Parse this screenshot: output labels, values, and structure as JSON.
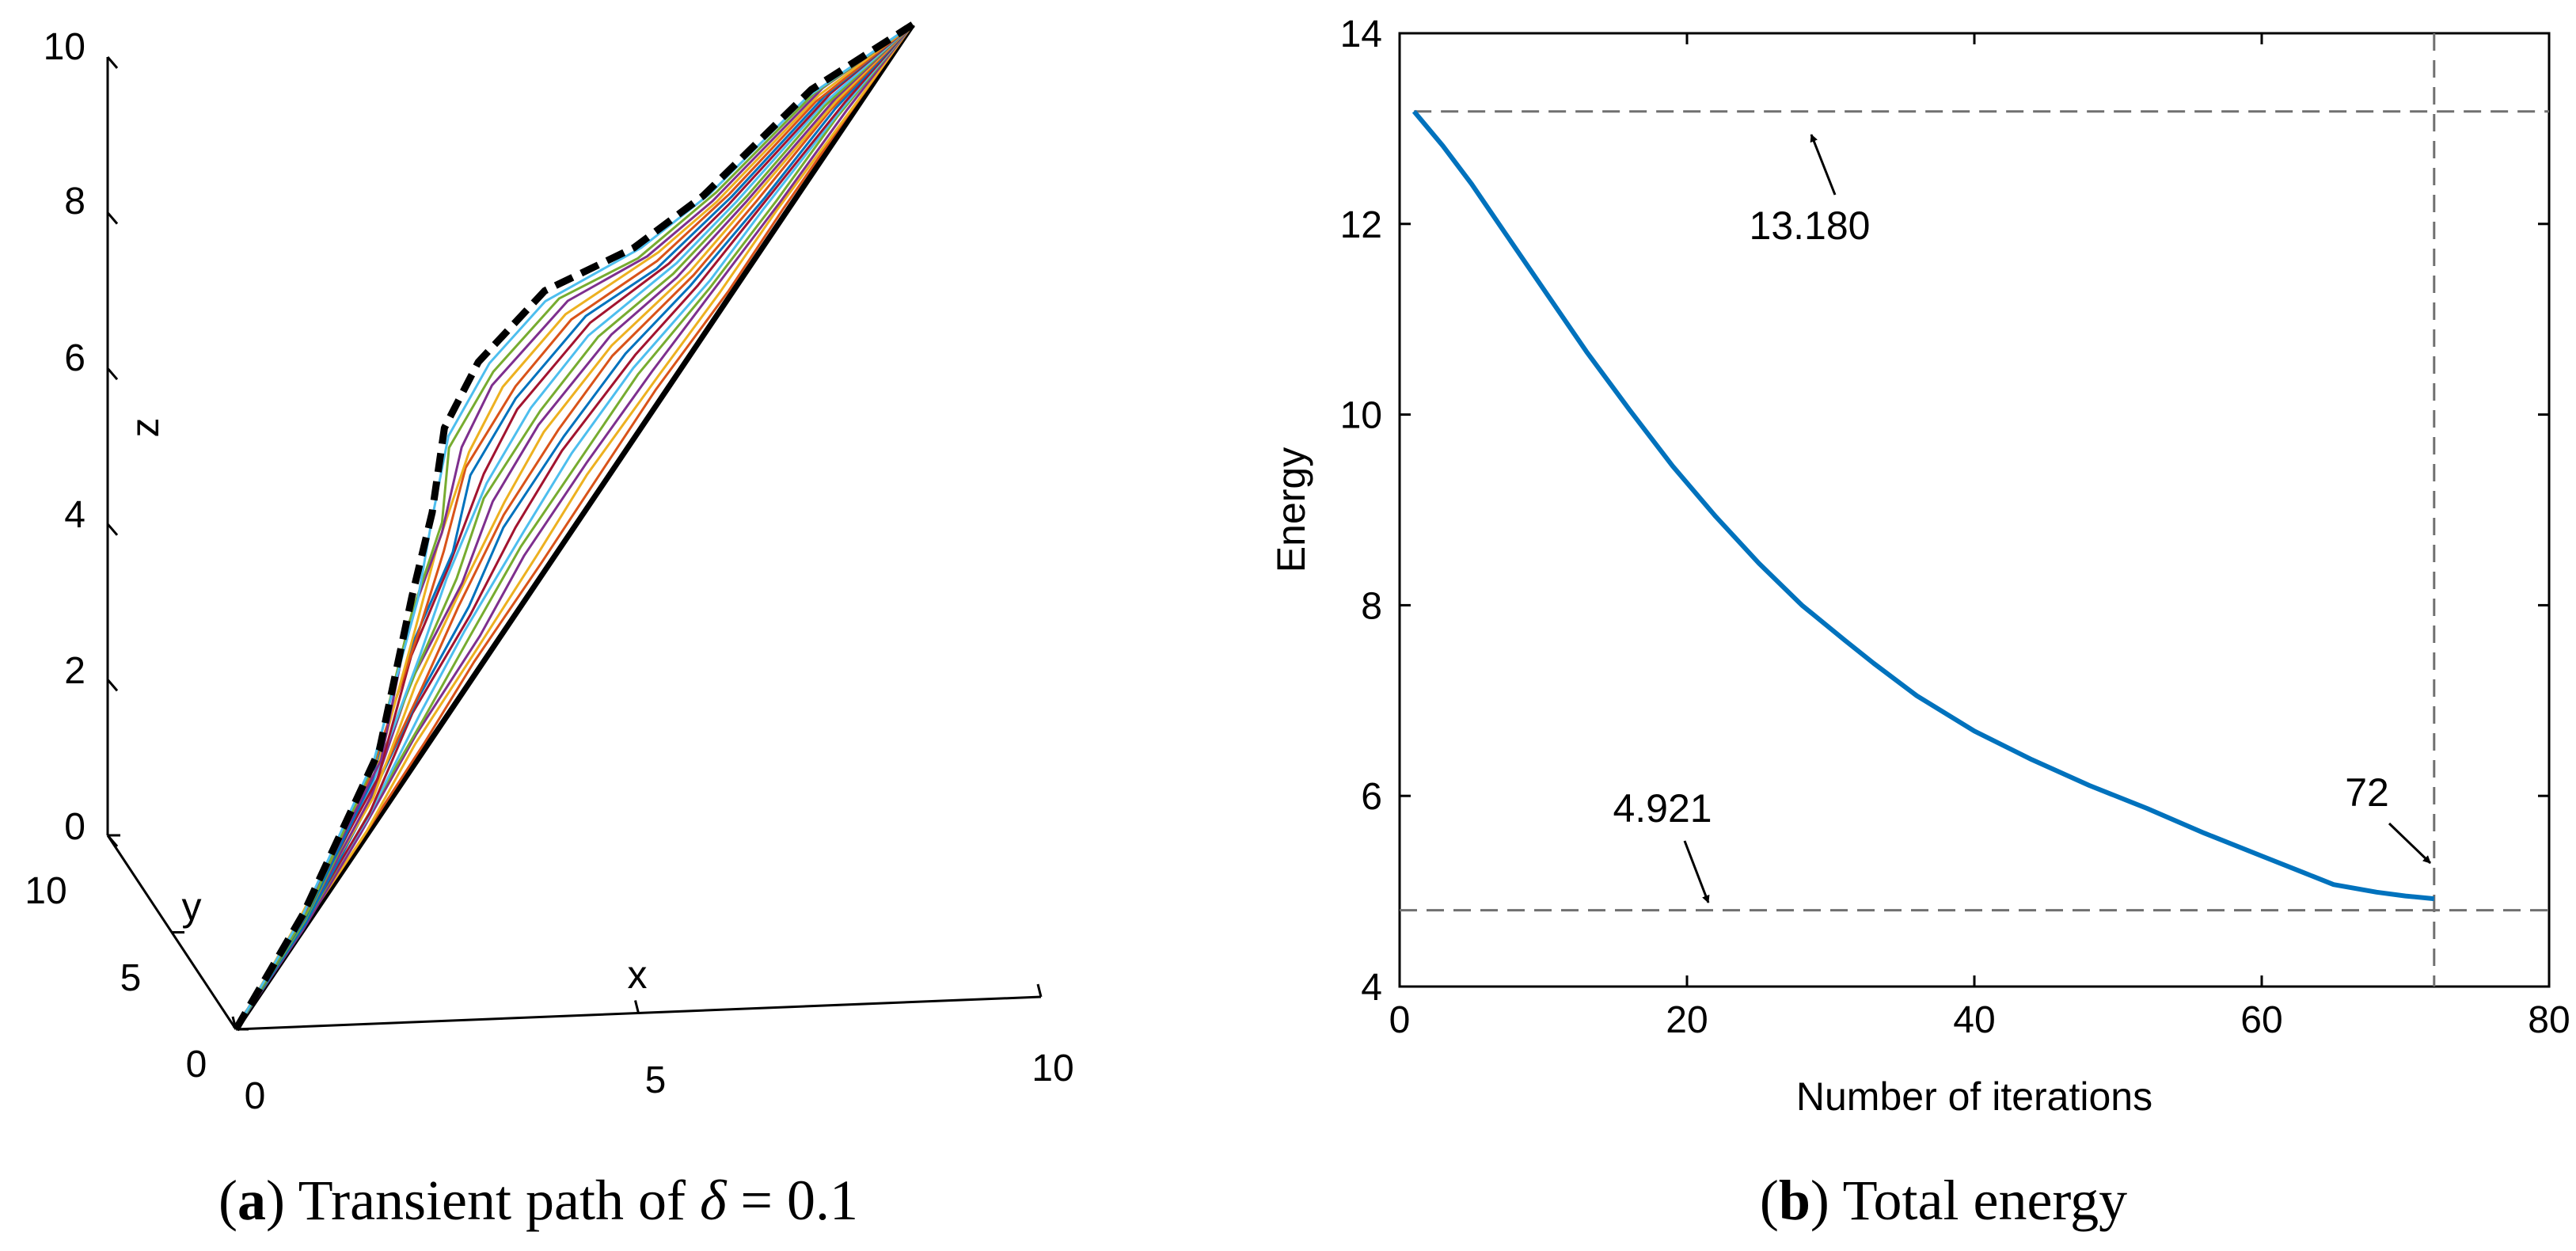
{
  "chart_data": [
    {
      "type": "line3d",
      "caption": {
        "label": "a",
        "text": "Transient path of",
        "symbol": "δ",
        "value_text": "= 0.1"
      },
      "xlabel": "x",
      "ylabel": "y",
      "zlabel": "z",
      "xlim": [
        0,
        10
      ],
      "ylim": [
        0,
        10
      ],
      "zlim": [
        0,
        10
      ],
      "x_ticks": [
        "0",
        "5",
        "10"
      ],
      "y_ticks": [
        "0",
        "5",
        "10"
      ],
      "z_ticks": [
        "0",
        "2",
        "4",
        "6",
        "8",
        "10"
      ],
      "series_colors": [
        "#0072BD",
        "#D95319",
        "#EDB120",
        "#7E2F8E",
        "#77AC30",
        "#4DBEEE",
        "#A2142F"
      ],
      "num_transient_paths": 20,
      "paths_description": "Transient paths morph from the straight line (start) to the dashed black optimized path (end)",
      "start_point": [
        0,
        0,
        0
      ],
      "end_point": [
        10,
        10,
        10
      ]
    },
    {
      "type": "line",
      "caption": {
        "label": "b",
        "text": "Total energy"
      },
      "title": "",
      "xlabel": "Number of iterations",
      "ylabel": "Energy",
      "xlim": [
        0,
        80
      ],
      "ylim": [
        4,
        14
      ],
      "x_ticks": [
        "0",
        "20",
        "40",
        "60",
        "80"
      ],
      "y_ticks": [
        "4",
        "6",
        "8",
        "10",
        "12",
        "14"
      ],
      "series": [
        {
          "name": "Total energy",
          "color": "#0072BD",
          "x": [
            1,
            3,
            5,
            7,
            10,
            13,
            16,
            19,
            22,
            25,
            28,
            31,
            33,
            36,
            40,
            44,
            48,
            52,
            56,
            60,
            63,
            65,
            68,
            70,
            72
          ],
          "y": [
            13.18,
            12.82,
            12.42,
            11.98,
            11.32,
            10.66,
            10.05,
            9.46,
            8.93,
            8.44,
            8.0,
            7.63,
            7.39,
            7.05,
            6.68,
            6.38,
            6.11,
            5.87,
            5.61,
            5.37,
            5.19,
            5.07,
            4.99,
            4.95,
            4.921
          ]
        }
      ],
      "reference_lines": {
        "h_top": 13.18,
        "h_bottom": 4.8,
        "v": 72
      },
      "annotations": [
        {
          "text": "13.180",
          "value": 13.18
        },
        {
          "text": "4.921",
          "value": 4.921
        },
        {
          "text": "72",
          "value": 72
        }
      ]
    }
  ]
}
